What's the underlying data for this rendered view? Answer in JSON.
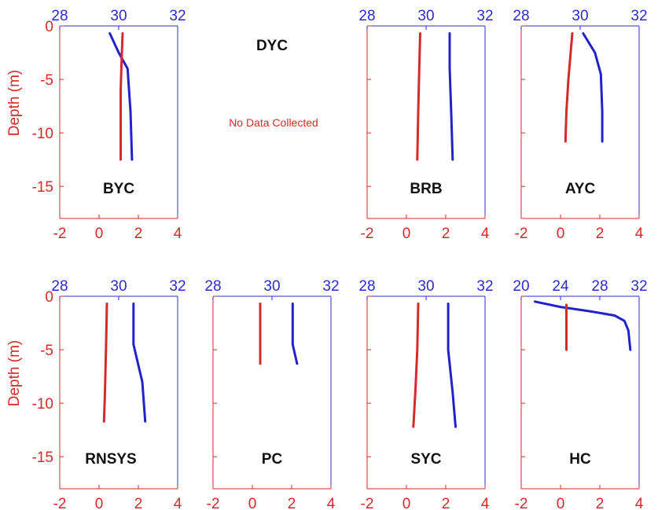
{
  "colors": {
    "red": "#d42a2a",
    "blue": "#2222cc",
    "axis_red": "#d42a2a",
    "axis_blue": "#2b2bd4"
  },
  "chart_data": {
    "type": "line",
    "ylabel": "Depth (m)",
    "y_ticks": [
      "0",
      "-5",
      "-10",
      "-15"
    ],
    "ylim": [
      -18,
      0
    ],
    "red_axis": {
      "ticks": [
        "-2",
        "0",
        "2",
        "4"
      ],
      "xlim": [
        -2,
        4
      ]
    },
    "note": "No Data Collected",
    "panels": [
      {
        "label": "BYC",
        "top_ticks": [
          "28",
          "30",
          "32"
        ],
        "top_xlim": [
          28,
          32
        ],
        "red": [
          [
            1.2,
            -0.7
          ],
          [
            1.15,
            -3
          ],
          [
            1.1,
            -6
          ],
          [
            1.1,
            -9
          ],
          [
            1.1,
            -12.5
          ]
        ],
        "blue": [
          [
            29.7,
            -0.7
          ],
          [
            30.0,
            -2.5
          ],
          [
            30.3,
            -4.0
          ],
          [
            30.4,
            -8.0
          ],
          [
            30.45,
            -12.5
          ]
        ]
      },
      {
        "label": "DYC",
        "top_ticks": [],
        "top_xlim": [
          28,
          32
        ],
        "red": [],
        "blue": [],
        "no_data": true
      },
      {
        "label": "BRB",
        "top_ticks": [
          "28",
          "30",
          "32"
        ],
        "top_xlim": [
          28,
          32
        ],
        "red": [
          [
            0.7,
            -0.7
          ],
          [
            0.65,
            -4
          ],
          [
            0.6,
            -8
          ],
          [
            0.55,
            -12.5
          ]
        ],
        "blue": [
          [
            30.8,
            -0.7
          ],
          [
            30.8,
            -4
          ],
          [
            30.85,
            -8
          ],
          [
            30.9,
            -12.5
          ]
        ]
      },
      {
        "label": "AYC",
        "top_ticks": [
          "28",
          "30",
          "32"
        ],
        "top_xlim": [
          28,
          32
        ],
        "red": [
          [
            0.6,
            -0.7
          ],
          [
            0.4,
            -5
          ],
          [
            0.3,
            -8
          ],
          [
            0.25,
            -10.8
          ]
        ],
        "blue": [
          [
            30.1,
            -0.7
          ],
          [
            30.5,
            -2.5
          ],
          [
            30.7,
            -4.5
          ],
          [
            30.75,
            -8
          ],
          [
            30.75,
            -10.8
          ]
        ]
      },
      {
        "label": "RNSYS",
        "top_ticks": [
          "28",
          "30",
          "32"
        ],
        "top_xlim": [
          28,
          32
        ],
        "red": [
          [
            0.4,
            -0.7
          ],
          [
            0.35,
            -5
          ],
          [
            0.3,
            -9
          ],
          [
            0.25,
            -11.7
          ]
        ],
        "blue": [
          [
            30.5,
            -0.7
          ],
          [
            30.5,
            -4.5
          ],
          [
            30.8,
            -8
          ],
          [
            30.9,
            -11.7
          ]
        ]
      },
      {
        "label": "PC",
        "top_ticks": [
          "28",
          "30",
          "32"
        ],
        "top_xlim": [
          28,
          32
        ],
        "red": [
          [
            0.4,
            -0.7
          ],
          [
            0.4,
            -6.3
          ]
        ],
        "blue": [
          [
            30.7,
            -0.7
          ],
          [
            30.7,
            -4.5
          ],
          [
            30.85,
            -6.3
          ]
        ]
      },
      {
        "label": "SYC",
        "top_ticks": [
          "28",
          "30",
          "32"
        ],
        "top_xlim": [
          28,
          32
        ],
        "red": [
          [
            0.6,
            -0.7
          ],
          [
            0.55,
            -5
          ],
          [
            0.45,
            -9
          ],
          [
            0.35,
            -12.2
          ]
        ],
        "blue": [
          [
            30.75,
            -0.7
          ],
          [
            30.75,
            -5
          ],
          [
            30.9,
            -9
          ],
          [
            31.0,
            -12.2
          ]
        ]
      },
      {
        "label": "HC",
        "top_ticks": [
          "20",
          "24",
          "28",
          "32"
        ],
        "top_xlim": [
          20,
          32
        ],
        "red": [
          [
            0.3,
            -0.8
          ],
          [
            0.3,
            -5
          ]
        ],
        "blue": [
          [
            21.4,
            -0.5
          ],
          [
            24.0,
            -1.0
          ],
          [
            27.0,
            -1.4
          ],
          [
            29.5,
            -1.8
          ],
          [
            30.5,
            -2.3
          ],
          [
            30.9,
            -3.2
          ],
          [
            31.1,
            -5.0
          ]
        ]
      }
    ]
  }
}
